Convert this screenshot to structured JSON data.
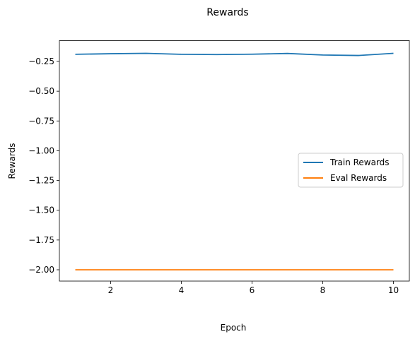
{
  "chart_data": {
    "type": "line",
    "title": "Rewards",
    "xlabel": "Epoch",
    "ylabel": "Rewards",
    "xlim": [
      0.55,
      10.45
    ],
    "ylim": [
      -2.095,
      -0.075
    ],
    "x": [
      1,
      2,
      3,
      4,
      5,
      6,
      7,
      8,
      9,
      10
    ],
    "xticks": [
      2,
      4,
      6,
      8,
      10
    ],
    "xtick_labels": [
      "2",
      "4",
      "6",
      "8",
      "10"
    ],
    "yticks": [
      -0.25,
      -0.5,
      -0.75,
      -1.0,
      -1.25,
      -1.5,
      -1.75,
      -2.0
    ],
    "ytick_labels": [
      "−0.25",
      "−0.50",
      "−0.75",
      "−1.00",
      "−1.25",
      "−1.50",
      "−1.75",
      "−2.00"
    ],
    "grid": false,
    "legend_position": "center-right",
    "series": [
      {
        "name": "Train Rewards",
        "color": "#1f77b4",
        "values": [
          -0.19,
          -0.185,
          -0.182,
          -0.19,
          -0.192,
          -0.189,
          -0.183,
          -0.196,
          -0.2,
          -0.182
        ]
      },
      {
        "name": "Eval Rewards",
        "color": "#ff7f0e",
        "values": [
          -2.0,
          -2.0,
          -2.0,
          -2.0,
          -2.0,
          -2.0,
          -2.0,
          -2.0,
          -2.0,
          -2.0
        ]
      }
    ]
  }
}
